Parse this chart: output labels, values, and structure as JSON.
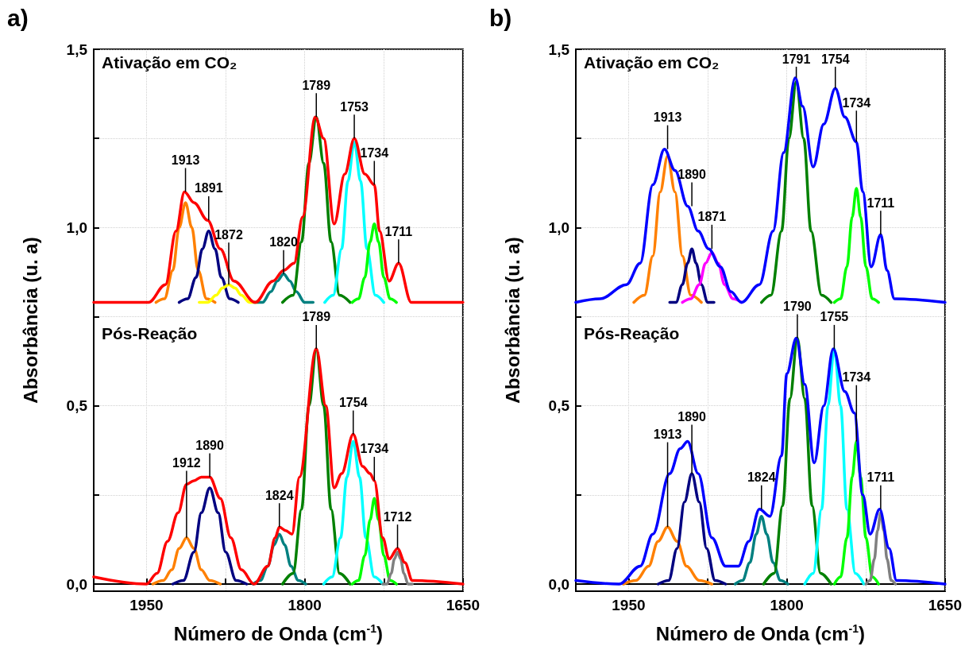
{
  "chart_data": [
    {
      "type": "line",
      "title": "a)",
      "xlabel": "Número de Onda (cm$^{-1}$)",
      "ylabel": "Absorbância (u. a)",
      "xlim": [
        2000,
        1650
      ],
      "xticks": [
        {
          "value": 1950,
          "label": "1950"
        },
        {
          "value": 1875,
          "label": null
        },
        {
          "value": 1800,
          "label": "1800"
        },
        {
          "value": 1725,
          "label": null
        },
        {
          "value": 1650,
          "label": "1650"
        }
      ],
      "ylim": [
        -0.02,
        1.5
      ],
      "yticks": [
        {
          "value": 0,
          "label": "0,0"
        },
        {
          "value": 0.25,
          "label": null
        },
        {
          "value": 0.5,
          "label": "0,5"
        },
        {
          "value": 0.75,
          "label": null
        },
        {
          "value": 1,
          "label": "1,0"
        },
        {
          "value": 1.25,
          "label": null
        },
        {
          "value": 1.5,
          "label": "1,5"
        }
      ],
      "grid": true,
      "marker": "none",
      "line_style": "solid",
      "series": [
        {
          "color": "#ff8000",
          "x": [
            1941,
            1933,
            1925,
            1919,
            1913,
            1907,
            1901,
            1893,
            1885
          ],
          "values": [
            0.79,
            0.8,
            0.88,
            1.0,
            1.07,
            1.0,
            0.88,
            0.8,
            0.79
          ]
        },
        {
          "color": "#000080",
          "x": [
            1919,
            1911,
            1903,
            1897,
            1891,
            1885,
            1879,
            1871,
            1863
          ],
          "values": [
            0.79,
            0.8,
            0.86,
            0.94,
            0.99,
            0.94,
            0.86,
            0.8,
            0.79
          ]
        },
        {
          "color": "#ffff00",
          "x": [
            1900,
            1892,
            1884,
            1878,
            1872,
            1866,
            1860,
            1852,
            1844
          ],
          "values": [
            0.79,
            0.79,
            0.81,
            0.83,
            0.84,
            0.83,
            0.81,
            0.79,
            0.79
          ]
        },
        {
          "color": "#008080",
          "x": [
            1848,
            1840,
            1832,
            1826,
            1820,
            1814,
            1808,
            1800,
            1792
          ],
          "values": [
            0.79,
            0.79,
            0.82,
            0.85,
            0.87,
            0.85,
            0.82,
            0.79,
            0.79
          ]
        },
        {
          "color": "#008000",
          "x": [
            1821,
            1811,
            1803,
            1796,
            1789,
            1782,
            1775,
            1767,
            1757
          ],
          "values": [
            0.79,
            0.81,
            0.96,
            1.18,
            1.31,
            1.18,
            0.96,
            0.81,
            0.79
          ]
        },
        {
          "color": "#00ffff",
          "x": [
            1781,
            1773,
            1765,
            1759,
            1753,
            1747,
            1741,
            1733,
            1725
          ],
          "values": [
            0.79,
            0.81,
            0.94,
            1.13,
            1.24,
            1.13,
            0.94,
            0.81,
            0.79
          ]
        },
        {
          "color": "#00ff00",
          "x": [
            1755,
            1749,
            1743,
            1738,
            1734,
            1730,
            1725,
            1719,
            1713
          ],
          "values": [
            0.79,
            0.8,
            0.86,
            0.96,
            1.01,
            0.96,
            0.86,
            0.8,
            0.79
          ]
        },
        {
          "color": "#ff0000",
          "x": [
            2000,
            1948,
            1932,
            1922,
            1914,
            1905,
            1892,
            1880,
            1867,
            1847,
            1830,
            1820,
            1810,
            1802,
            1790,
            1782,
            1772,
            1762,
            1753,
            1743,
            1734,
            1729,
            1720,
            1711,
            1699,
            1650
          ],
          "values": [
            0.79,
            0.79,
            0.84,
            0.99,
            1.1,
            1.07,
            1.02,
            0.94,
            0.85,
            0.79,
            0.85,
            0.88,
            0.9,
            1.03,
            1.31,
            1.25,
            1.01,
            1.15,
            1.25,
            1.15,
            1.12,
            0.99,
            0.85,
            0.9,
            0.79,
            0.79
          ]
        },
        {
          "color": "#ff8000",
          "x": [
            1944,
            1934,
            1926,
            1919,
            1912,
            1905,
            1898,
            1890,
            1880
          ],
          "values": [
            0,
            0.01,
            0.04,
            0.1,
            0.13,
            0.1,
            0.04,
            0.01,
            0
          ]
        },
        {
          "color": "#000080",
          "x": [
            1925,
            1915,
            1905,
            1898,
            1890,
            1882,
            1875,
            1865,
            1855
          ],
          "values": [
            0,
            0.01,
            0.09,
            0.2,
            0.27,
            0.2,
            0.09,
            0.01,
            0
          ]
        },
        {
          "color": "#008080",
          "x": [
            1849,
            1842,
            1835,
            1829,
            1824,
            1819,
            1813,
            1806,
            1799
          ],
          "values": [
            0,
            0.01,
            0.05,
            0.11,
            0.14,
            0.11,
            0.05,
            0.01,
            0
          ]
        },
        {
          "color": "#008000",
          "x": [
            1821,
            1811,
            1803,
            1796,
            1789,
            1782,
            1775,
            1767,
            1757
          ],
          "values": [
            0,
            0.03,
            0.21,
            0.5,
            0.66,
            0.5,
            0.21,
            0.03,
            0
          ]
        },
        {
          "color": "#00ffff",
          "x": [
            1782,
            1774,
            1766,
            1760,
            1754,
            1748,
            1742,
            1734,
            1726
          ],
          "values": [
            0,
            0.02,
            0.13,
            0.3,
            0.4,
            0.3,
            0.13,
            0.02,
            0
          ]
        },
        {
          "color": "#00ff00",
          "x": [
            1755,
            1749,
            1743,
            1738,
            1734,
            1730,
            1725,
            1719,
            1713
          ],
          "values": [
            0,
            0.01,
            0.08,
            0.18,
            0.24,
            0.18,
            0.08,
            0.01,
            0
          ]
        },
        {
          "color": "#808080",
          "x": [
            1726,
            1722,
            1718,
            1715,
            1712,
            1709,
            1706,
            1702,
            1698
          ],
          "values": [
            0,
            0,
            0.03,
            0.07,
            0.09,
            0.07,
            0.03,
            0,
            0
          ]
        },
        {
          "color": "#ff0000",
          "x": [
            2000,
            1950,
            1940,
            1930,
            1920,
            1912,
            1905,
            1898,
            1890,
            1880,
            1870,
            1860,
            1848,
            1835,
            1828,
            1824,
            1818,
            1812,
            1805,
            1789,
            1780,
            1772,
            1765,
            1754,
            1745,
            1738,
            1734,
            1726,
            1720,
            1712,
            1705,
            1698,
            1650
          ],
          "values": [
            0.02,
            0,
            0.03,
            0.12,
            0.2,
            0.28,
            0.29,
            0.3,
            0.3,
            0.24,
            0.13,
            0.04,
            0,
            0.05,
            0.13,
            0.16,
            0.15,
            0.14,
            0.3,
            0.66,
            0.5,
            0.27,
            0.31,
            0.42,
            0.33,
            0.31,
            0.29,
            0.13,
            0.07,
            0.1,
            0.06,
            0.01,
            0
          ]
        }
      ],
      "annotations": [
        "Ativação em CO₂",
        "Pós-Reação",
        {
          "text": "1913",
          "x": 1913,
          "y": 1.1
        },
        {
          "text": "1891",
          "x": 1891,
          "y": 1.02
        },
        {
          "text": "1872",
          "x": 1872,
          "y": 0.84
        },
        {
          "text": "1820",
          "x": 1820,
          "y": 0.87
        },
        {
          "text": "1789",
          "x": 1789,
          "y": 1.31
        },
        {
          "text": "1753",
          "x": 1753,
          "y": 1.25
        },
        {
          "text": "1734",
          "x": 1734,
          "y": 1.12
        },
        {
          "text": "1711",
          "x": 1711,
          "y": 0.9
        },
        {
          "text": "1912",
          "x": 1912,
          "y": 0.13
        },
        {
          "text": "1890",
          "x": 1890,
          "y": 0.3
        },
        {
          "text": "1824",
          "x": 1824,
          "y": 0.16
        },
        {
          "text": "1789",
          "x": 1789,
          "y": 0.66
        },
        {
          "text": "1754",
          "x": 1754,
          "y": 0.42
        },
        {
          "text": "1734",
          "x": 1734,
          "y": 0.29
        },
        {
          "text": "1712",
          "x": 1712,
          "y": 0.1
        }
      ]
    },
    {
      "type": "line",
      "title": "b)",
      "xlabel": "Número de Onda (cm$^{-1}$)",
      "ylabel": "Absorbância (u. a)",
      "xlim": [
        2000,
        1650
      ],
      "xticks": [
        {
          "value": 1950,
          "label": "1950"
        },
        {
          "value": 1875,
          "label": null
        },
        {
          "value": 1800,
          "label": "1800"
        },
        {
          "value": 1725,
          "label": null
        },
        {
          "value": 1650,
          "label": "1650"
        }
      ],
      "ylim": [
        -0.02,
        1.5
      ],
      "yticks": [
        {
          "value": 0,
          "label": "0,0"
        },
        {
          "value": 0.25,
          "label": null
        },
        {
          "value": 0.5,
          "label": "0,5"
        },
        {
          "value": 0.75,
          "label": null
        },
        {
          "value": 1,
          "label": "1,0"
        },
        {
          "value": 1.25,
          "label": null
        },
        {
          "value": 1.5,
          "label": "1,5"
        }
      ],
      "grid": true,
      "marker": "none",
      "line_style": "solid",
      "series": [
        {
          "color": "#ff8000",
          "x": [
            1945,
            1935,
            1927,
            1920,
            1913,
            1906,
            1899,
            1891,
            1881
          ],
          "values": [
            0.79,
            0.81,
            0.92,
            1.1,
            1.2,
            1.1,
            0.92,
            0.81,
            0.79
          ]
        },
        {
          "color": "#000080",
          "x": [
            1911,
            1905,
            1899,
            1894,
            1890,
            1886,
            1881,
            1875,
            1869
          ],
          "values": [
            0.79,
            0.79,
            0.84,
            0.9,
            0.94,
            0.9,
            0.84,
            0.79,
            0.79
          ]
        },
        {
          "color": "#ff00ff",
          "x": [
            1899,
            1891,
            1883,
            1877,
            1871,
            1865,
            1859,
            1851,
            1843
          ],
          "values": [
            0.79,
            0.8,
            0.84,
            0.9,
            0.93,
            0.9,
            0.84,
            0.8,
            0.79
          ]
        },
        {
          "color": "#008000",
          "x": [
            1824,
            1815,
            1805,
            1798,
            1791,
            1784,
            1777,
            1767,
            1758
          ],
          "values": [
            0.79,
            0.81,
            0.99,
            1.25,
            1.41,
            1.25,
            0.99,
            0.81,
            0.79
          ]
        },
        {
          "color": "#00ff00",
          "x": [
            1755,
            1749,
            1743,
            1738,
            1734,
            1730,
            1725,
            1719,
            1713
          ],
          "values": [
            0.79,
            0.8,
            0.89,
            1.03,
            1.11,
            1.03,
            0.89,
            0.8,
            0.79
          ]
        },
        {
          "color": "#0000ff",
          "x": [
            2000,
            1977,
            1952,
            1939,
            1927,
            1916,
            1906,
            1894,
            1884,
            1874,
            1863,
            1853,
            1843,
            1826,
            1813,
            1803,
            1792,
            1785,
            1775,
            1765,
            1754,
            1745,
            1734,
            1728,
            1720,
            1711,
            1705,
            1698,
            1650
          ],
          "values": [
            0.79,
            0.8,
            0.84,
            0.9,
            1.12,
            1.22,
            1.16,
            1.06,
            0.99,
            0.94,
            0.89,
            0.82,
            0.79,
            0.84,
            0.99,
            1.21,
            1.42,
            1.34,
            1.17,
            1.29,
            1.39,
            1.31,
            1.24,
            1.1,
            0.89,
            0.98,
            0.88,
            0.8,
            0.79
          ]
        },
        {
          "color": "#ff8000",
          "x": [
            1955,
            1943,
            1931,
            1922,
            1913,
            1904,
            1895,
            1883,
            1871
          ],
          "values": [
            0,
            0.01,
            0.05,
            0.12,
            0.16,
            0.12,
            0.05,
            0.01,
            0
          ]
        },
        {
          "color": "#000080",
          "x": [
            1922,
            1912,
            1904,
            1897,
            1890,
            1883,
            1876,
            1868,
            1858
          ],
          "values": [
            0,
            0.01,
            0.1,
            0.23,
            0.31,
            0.23,
            0.1,
            0.01,
            0
          ]
        },
        {
          "color": "#008080",
          "x": [
            1849,
            1842,
            1835,
            1829,
            1824,
            1819,
            1813,
            1806,
            1799
          ],
          "values": [
            0,
            0.01,
            0.06,
            0.14,
            0.19,
            0.14,
            0.06,
            0.01,
            0
          ]
        },
        {
          "color": "#008000",
          "x": [
            1822,
            1812,
            1804,
            1797,
            1790,
            1783,
            1776,
            1768,
            1758
          ],
          "values": [
            0,
            0.03,
            0.22,
            0.52,
            0.69,
            0.52,
            0.22,
            0.03,
            0
          ]
        },
        {
          "color": "#00ffff",
          "x": [
            1783,
            1775,
            1767,
            1761,
            1755,
            1749,
            1743,
            1735,
            1727
          ],
          "values": [
            0,
            0.03,
            0.21,
            0.5,
            0.66,
            0.5,
            0.21,
            0.03,
            0
          ]
        },
        {
          "color": "#00ff00",
          "x": [
            1755,
            1749,
            1743,
            1738,
            1734,
            1730,
            1725,
            1719,
            1713
          ],
          "values": [
            0,
            0.02,
            0.13,
            0.3,
            0.4,
            0.3,
            0.13,
            0.02,
            0
          ]
        },
        {
          "color": "#808080",
          "x": [
            1725,
            1721,
            1717,
            1714,
            1711,
            1708,
            1705,
            1701,
            1697
          ],
          "values": [
            0,
            0.01,
            0.07,
            0.15,
            0.2,
            0.15,
            0.07,
            0.01,
            0
          ]
        },
        {
          "color": "#0000ff",
          "x": [
            2000,
            1959,
            1939,
            1927,
            1911,
            1901,
            1894,
            1884,
            1871,
            1858,
            1846,
            1836,
            1826,
            1816,
            1805,
            1800,
            1791,
            1783,
            1774,
            1765,
            1756,
            1745,
            1736,
            1728,
            1721,
            1712,
            1703,
            1696,
            1650
          ],
          "values": [
            0.01,
            0,
            0.05,
            0.14,
            0.31,
            0.38,
            0.4,
            0.31,
            0.13,
            0.05,
            0.05,
            0.12,
            0.21,
            0.19,
            0.36,
            0.59,
            0.69,
            0.56,
            0.34,
            0.5,
            0.66,
            0.54,
            0.48,
            0.25,
            0.14,
            0.21,
            0.1,
            0.01,
            0
          ]
        }
      ],
      "annotations": [
        "Ativação em CO₂",
        "Pós-Reação",
        {
          "text": "1913",
          "x": 1913,
          "y": 1.22
        },
        {
          "text": "1890",
          "x": 1890,
          "y": 1.06
        },
        {
          "text": "1871",
          "x": 1871,
          "y": 0.94
        },
        {
          "text": "1791",
          "x": 1791,
          "y": 1.42
        },
        {
          "text": "1754",
          "x": 1754,
          "y": 1.39
        },
        {
          "text": "1734",
          "x": 1734,
          "y": 1.24
        },
        {
          "text": "1711",
          "x": 1711,
          "y": 0.98
        },
        {
          "text": "1913",
          "x": 1913,
          "y": 0.16
        },
        {
          "text": "1890",
          "x": 1890,
          "y": 0.31
        },
        {
          "text": "1824",
          "x": 1824,
          "y": 0.21
        },
        {
          "text": "1790",
          "x": 1790,
          "y": 0.69
        },
        {
          "text": "1755",
          "x": 1755,
          "y": 0.66
        },
        {
          "text": "1734",
          "x": 1734,
          "y": 0.4
        },
        {
          "text": "1711",
          "x": 1711,
          "y": 0.21
        }
      ]
    }
  ]
}
